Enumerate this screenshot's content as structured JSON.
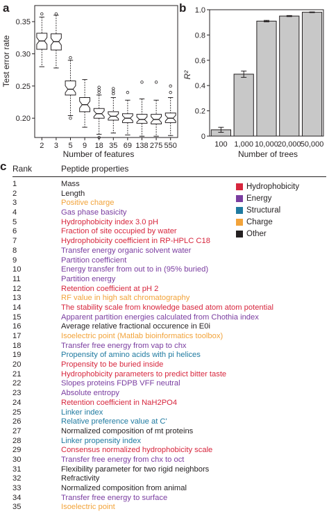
{
  "panel_labels": {
    "a": "a",
    "b": "b",
    "c": "c"
  },
  "colors": {
    "Hydrophobicity": "#d7263d",
    "Energy": "#7a3da0",
    "Structural": "#1f7aa0",
    "Charge": "#f2a33a",
    "Other": "#231f20",
    "bar_fill": "#c8c8c8",
    "box_fill": "#ffffff",
    "axis": "#231f20"
  },
  "chart_data": [
    {
      "type": "box",
      "panel": "a",
      "xlabel": "Number of features",
      "ylabel": "Test error rate",
      "categories": [
        "2",
        "3",
        "5",
        "9",
        "18",
        "35",
        "69",
        "138",
        "275",
        "550"
      ],
      "yticks": [
        0.2,
        0.25,
        0.3,
        0.35
      ],
      "ylim": [
        0.17,
        0.375
      ],
      "boxes": [
        {
          "whisker_low": 0.28,
          "q1": 0.307,
          "median": 0.32,
          "q3": 0.332,
          "whisker_high": 0.357,
          "outliers": [
            0.362
          ]
        },
        {
          "whisker_low": 0.278,
          "q1": 0.306,
          "median": 0.319,
          "q3": 0.331,
          "whisker_high": 0.36,
          "outliers": [
            0.362
          ]
        },
        {
          "whisker_low": 0.204,
          "q1": 0.236,
          "median": 0.245,
          "q3": 0.258,
          "whisker_high": 0.29,
          "outliers": [
            0.2,
            0.294
          ]
        },
        {
          "whisker_low": 0.186,
          "q1": 0.21,
          "median": 0.221,
          "q3": 0.232,
          "whisker_high": 0.26,
          "outliers": []
        },
        {
          "whisker_low": 0.175,
          "q1": 0.2,
          "median": 0.207,
          "q3": 0.215,
          "whisker_high": 0.236,
          "outliers": [
            0.17,
            0.24,
            0.244,
            0.248
          ]
        },
        {
          "whisker_low": 0.177,
          "q1": 0.197,
          "median": 0.203,
          "q3": 0.21,
          "whisker_high": 0.232,
          "outliers": [
            0.238,
            0.242,
            0.246
          ]
        },
        {
          "whisker_low": 0.174,
          "q1": 0.193,
          "median": 0.2,
          "q3": 0.207,
          "whisker_high": 0.228,
          "outliers": [
            0.24
          ]
        },
        {
          "whisker_low": 0.172,
          "q1": 0.192,
          "median": 0.198,
          "q3": 0.206,
          "whisker_high": 0.23,
          "outliers": [
            0.256
          ]
        },
        {
          "whisker_low": 0.172,
          "q1": 0.191,
          "median": 0.198,
          "q3": 0.206,
          "whisker_high": 0.228,
          "outliers": [
            0.256
          ]
        },
        {
          "whisker_low": 0.173,
          "q1": 0.193,
          "median": 0.2,
          "q3": 0.208,
          "whisker_high": 0.232,
          "outliers": [
            0.24,
            0.25
          ]
        }
      ]
    },
    {
      "type": "bar",
      "panel": "b",
      "xlabel": "Number of trees",
      "ylabel": "R²",
      "categories": [
        "100",
        "1,000",
        "10,000",
        "20,000",
        "50,000"
      ],
      "values": [
        0.05,
        0.49,
        0.91,
        0.95,
        0.98
      ],
      "errors": [
        0.02,
        0.025,
        0.006,
        0.004,
        0.003
      ],
      "yticks": [
        "0",
        "0.2",
        "0.4",
        "0.6",
        "0.8",
        "1.0"
      ],
      "ylim": [
        0,
        1.0
      ]
    },
    {
      "type": "table",
      "panel": "c",
      "columns": [
        "Rank",
        "Peptide properties"
      ],
      "legend": [
        {
          "label": "Hydrophobicity",
          "category": "Hydrophobicity"
        },
        {
          "label": "Energy",
          "category": "Energy"
        },
        {
          "label": "Structural",
          "category": "Structural"
        },
        {
          "label": "Charge",
          "category": "Charge"
        },
        {
          "label": "Other",
          "category": "Other"
        }
      ],
      "rows": [
        {
          "rank": "1",
          "property": "Mass",
          "category": "Other"
        },
        {
          "rank": "2",
          "property": "Length",
          "category": "Other"
        },
        {
          "rank": "3",
          "property": "Positive charge",
          "category": "Charge"
        },
        {
          "rank": "4",
          "property": "Gas phase basicity",
          "category": "Energy"
        },
        {
          "rank": "5",
          "property": "Hydrophobicity index 3.0 pH",
          "category": "Hydrophobicity"
        },
        {
          "rank": "6",
          "property": "Fraction of site occupied by water",
          "category": "Hydrophobicity"
        },
        {
          "rank": "7",
          "property": "Hydrophobicity coefficient in RP-HPLC C18",
          "category": "Hydrophobicity"
        },
        {
          "rank": "8",
          "property": "Transfer energy organic solvent water",
          "category": "Energy"
        },
        {
          "rank": "9",
          "property": "Partition coefficient",
          "category": "Energy"
        },
        {
          "rank": "10",
          "property": "Energy transfer from out to in (95% buried)",
          "category": "Energy"
        },
        {
          "rank": "11",
          "property": "Partition energy",
          "category": "Energy"
        },
        {
          "rank": "12",
          "property": "Retention coefficient at pH 2",
          "category": "Hydrophobicity"
        },
        {
          "rank": "13",
          "property": "RF value in high salt chromatography",
          "category": "Charge"
        },
        {
          "rank": "14",
          "property": "The stability scale from knowledge based atom atom potential",
          "category": "Hydrophobicity"
        },
        {
          "rank": "15",
          "property": "Apparent partition energies calculated from Chothia index",
          "category": "Energy"
        },
        {
          "rank": "16",
          "property": "Average relative fractional occurence in E0i",
          "category": "Other"
        },
        {
          "rank": "17",
          "property": "Isoelectric point (Matlab bioinformatics toolbox)",
          "category": "Charge"
        },
        {
          "rank": "18",
          "property": "Transfer free energy from vap to chx",
          "category": "Energy"
        },
        {
          "rank": "19",
          "property": "Propensity of amino acids with pi helices",
          "category": "Structural"
        },
        {
          "rank": "20",
          "property": "Propensity to be buried inside",
          "category": "Hydrophobicity"
        },
        {
          "rank": "21",
          "property": "Hydrophobicity parameters to predict bitter taste",
          "category": "Hydrophobicity"
        },
        {
          "rank": "22",
          "property": "Slopes proteins FDPB VFF neutral",
          "category": "Energy"
        },
        {
          "rank": "23",
          "property": "Absolute entropy",
          "category": "Energy"
        },
        {
          "rank": "24",
          "property": "Retention coefficient in NaH2PO4",
          "category": "Hydrophobicity"
        },
        {
          "rank": "25",
          "property": "Linker index",
          "category": "Structural"
        },
        {
          "rank": "26",
          "property": "Relative preference value at C'",
          "category": "Structural"
        },
        {
          "rank": "27",
          "property": "Normalized composition of mt proteins",
          "category": "Other"
        },
        {
          "rank": "28",
          "property": "Linker propensity index",
          "category": "Structural"
        },
        {
          "rank": "29",
          "property": "Consensus normalized hydrophobicity scale",
          "category": "Hydrophobicity"
        },
        {
          "rank": "30",
          "property": "Transfer free energy from chx to oct",
          "category": "Energy"
        },
        {
          "rank": "31",
          "property": "Flexibility parameter for two rigid neighbors",
          "category": "Other"
        },
        {
          "rank": "32",
          "property": "Refractivity",
          "category": "Other"
        },
        {
          "rank": "33",
          "property": "Normalized composition from animal",
          "category": "Other"
        },
        {
          "rank": "34",
          "property": "Transfer free energy to surface",
          "category": "Energy"
        },
        {
          "rank": "35",
          "property": "Isoelectric point",
          "category": "Charge"
        }
      ]
    }
  ]
}
